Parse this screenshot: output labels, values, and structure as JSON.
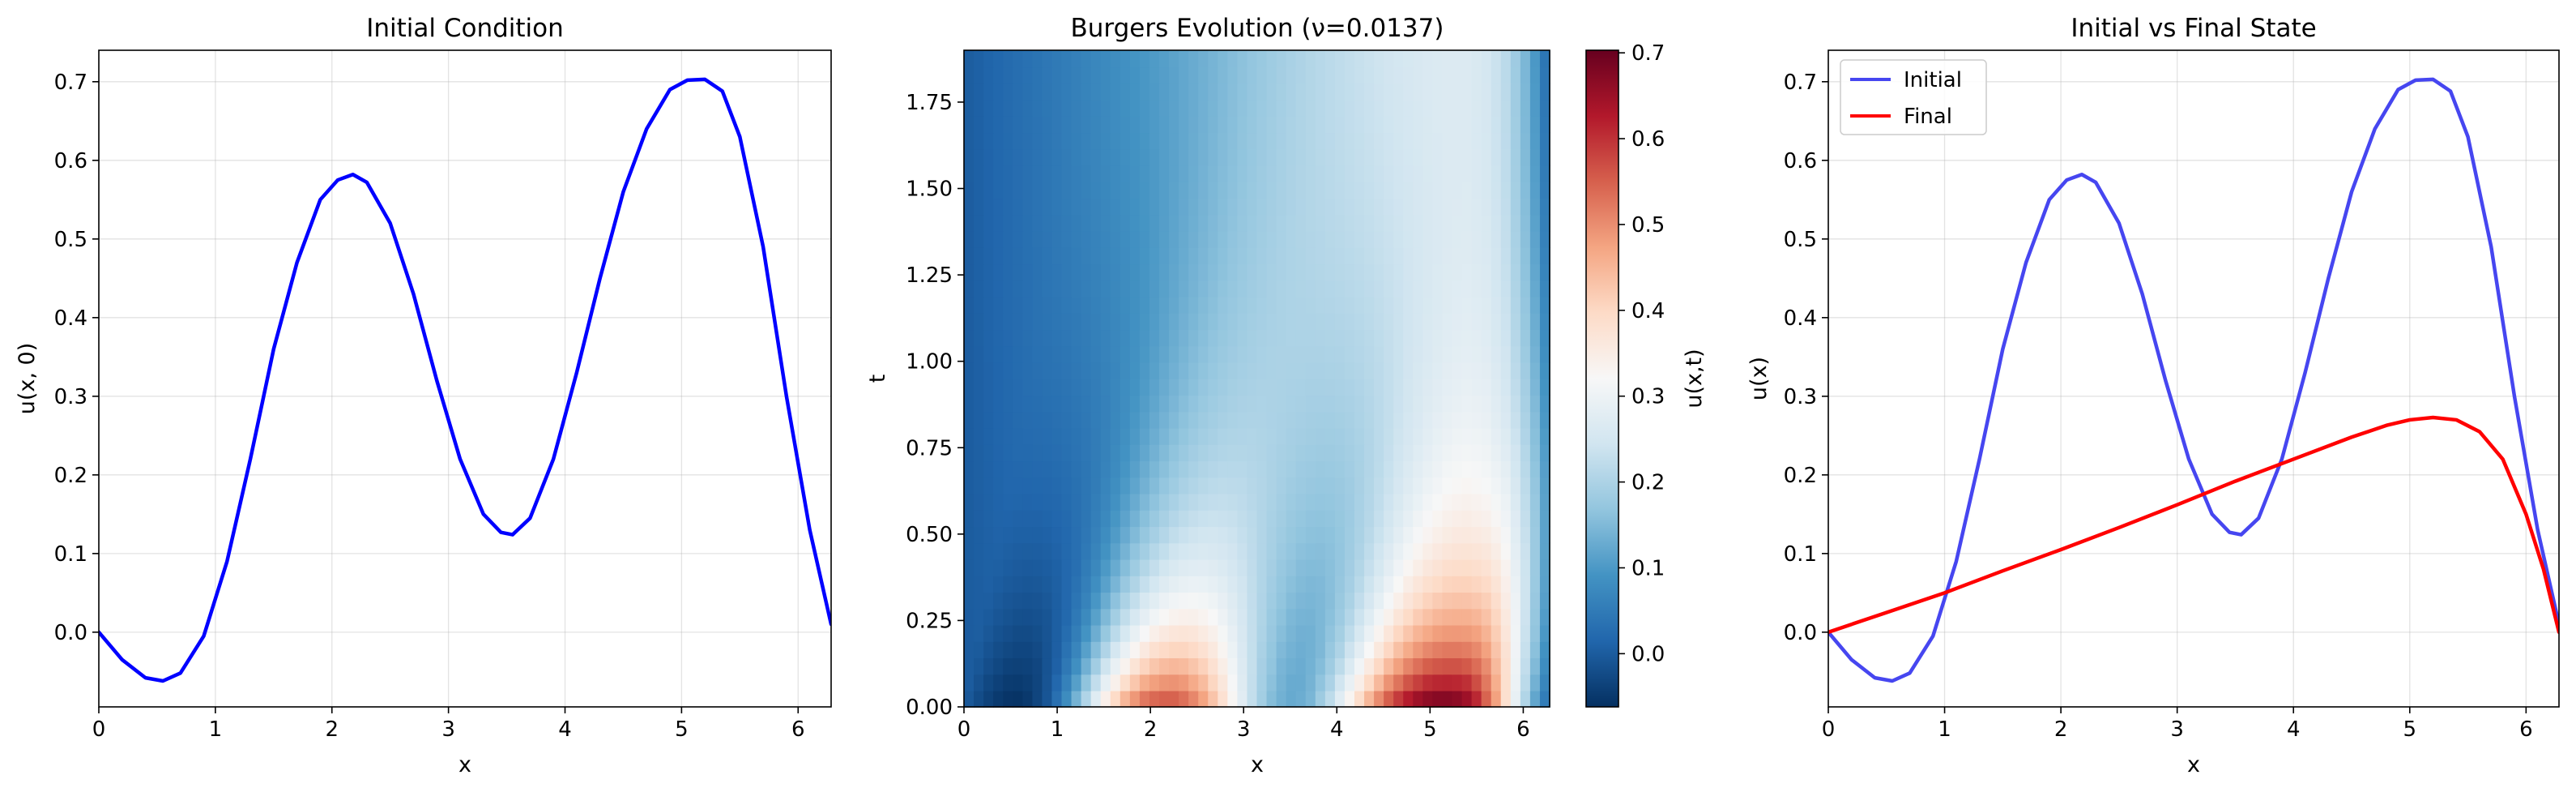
{
  "chart_data": [
    {
      "type": "line",
      "title": "Initial Condition",
      "xlabel": "x",
      "ylabel": "u(x, 0)",
      "xlim": [
        0,
        6.2832
      ],
      "ylim": [
        -0.095,
        0.74
      ],
      "xticks": [
        "0",
        "1",
        "2",
        "3",
        "4",
        "5",
        "6"
      ],
      "yticks": [
        "0.0",
        "0.1",
        "0.2",
        "0.3",
        "0.4",
        "0.5",
        "0.6",
        "0.7"
      ],
      "grid": true,
      "series": [
        {
          "color": "#0000ff",
          "x": [
            0,
            0.2,
            0.4,
            0.55,
            0.7,
            0.9,
            1.1,
            1.3,
            1.5,
            1.7,
            1.9,
            2.05,
            2.18,
            2.3,
            2.5,
            2.7,
            2.9,
            3.1,
            3.3,
            3.45,
            3.55,
            3.7,
            3.9,
            4.1,
            4.3,
            4.5,
            4.7,
            4.9,
            5.05,
            5.2,
            5.35,
            5.5,
            5.7,
            5.9,
            6.1,
            6.2832
          ],
          "y": [
            0.0,
            -0.035,
            -0.058,
            -0.062,
            -0.052,
            -0.005,
            0.09,
            0.22,
            0.36,
            0.47,
            0.55,
            0.575,
            0.582,
            0.572,
            0.52,
            0.43,
            0.32,
            0.22,
            0.15,
            0.127,
            0.124,
            0.145,
            0.22,
            0.33,
            0.45,
            0.56,
            0.64,
            0.69,
            0.702,
            0.703,
            0.688,
            0.63,
            0.49,
            0.3,
            0.13,
            0.01
          ]
        }
      ]
    },
    {
      "type": "heatmap",
      "title": "Burgers Evolution (ν=0.0137)",
      "xlabel": "x",
      "ylabel": "t",
      "xlim": [
        0,
        6.2832
      ],
      "ylim": [
        0,
        1.9
      ],
      "xticks": [
        "0",
        "1",
        "2",
        "3",
        "4",
        "5",
        "6"
      ],
      "yticks": [
        "0.00",
        "0.25",
        "0.50",
        "0.75",
        "1.00",
        "1.25",
        "1.50",
        "1.75"
      ],
      "colorbar_label": "u(x,t)",
      "colorbar_range": [
        -0.062,
        0.703
      ],
      "colorbar_ticks": [
        "0.0",
        "0.1",
        "0.2",
        "0.3",
        "0.4",
        "0.5",
        "0.6",
        "0.7"
      ],
      "colormap": "RdBu_r"
    },
    {
      "type": "line",
      "title": "Initial vs Final State",
      "xlabel": "x",
      "ylabel": "u(x)",
      "xlim": [
        0,
        6.2832
      ],
      "ylim": [
        -0.095,
        0.74
      ],
      "xticks": [
        "0",
        "1",
        "2",
        "3",
        "4",
        "5",
        "6"
      ],
      "yticks": [
        "0.0",
        "0.1",
        "0.2",
        "0.3",
        "0.4",
        "0.5",
        "0.6",
        "0.7"
      ],
      "grid": true,
      "legend": "top-left",
      "series": [
        {
          "name": "Initial",
          "color": "#4646f0",
          "x": [
            0,
            0.2,
            0.4,
            0.55,
            0.7,
            0.9,
            1.1,
            1.3,
            1.5,
            1.7,
            1.9,
            2.05,
            2.18,
            2.3,
            2.5,
            2.7,
            2.9,
            3.1,
            3.3,
            3.45,
            3.55,
            3.7,
            3.9,
            4.1,
            4.3,
            4.5,
            4.7,
            4.9,
            5.05,
            5.2,
            5.35,
            5.5,
            5.7,
            5.9,
            6.1,
            6.2832
          ],
          "y": [
            0.0,
            -0.035,
            -0.058,
            -0.062,
            -0.052,
            -0.005,
            0.09,
            0.22,
            0.36,
            0.47,
            0.55,
            0.575,
            0.582,
            0.572,
            0.52,
            0.43,
            0.32,
            0.22,
            0.15,
            0.127,
            0.124,
            0.145,
            0.22,
            0.33,
            0.45,
            0.56,
            0.64,
            0.69,
            0.702,
            0.703,
            0.688,
            0.63,
            0.49,
            0.3,
            0.13,
            0.01
          ]
        },
        {
          "name": "Final",
          "color": "#ff0000",
          "x": [
            0,
            0.5,
            1.0,
            1.5,
            2.0,
            2.5,
            3.0,
            3.5,
            4.0,
            4.5,
            4.8,
            5.0,
            5.2,
            5.4,
            5.6,
            5.8,
            6.0,
            6.15,
            6.2832
          ],
          "y": [
            0.0,
            0.025,
            0.05,
            0.078,
            0.105,
            0.133,
            0.162,
            0.192,
            0.22,
            0.248,
            0.263,
            0.27,
            0.273,
            0.27,
            0.255,
            0.22,
            0.15,
            0.08,
            0.0
          ]
        }
      ]
    }
  ]
}
